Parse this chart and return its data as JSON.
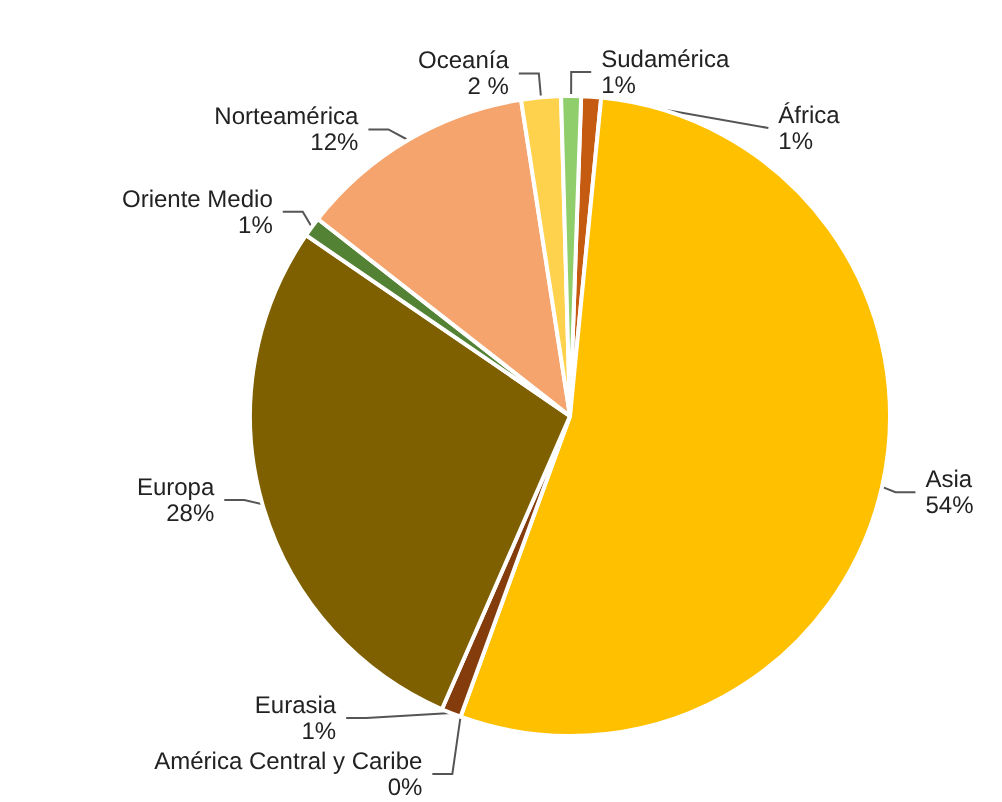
{
  "chart_data": {
    "type": "pie",
    "categories": [
      "África",
      "Asia",
      "América Central y Caribe",
      "Eurasia",
      "Europa",
      "Oriente Medio",
      "Norteamérica",
      "Oceanía",
      "Sudamérica"
    ],
    "values": [
      1,
      54,
      0,
      1,
      28,
      1,
      12,
      2,
      1
    ],
    "value_labels": [
      "1%",
      "54%",
      "0%",
      "1%",
      "28%",
      "1%",
      "12%",
      "2 %",
      "1%"
    ],
    "colors": [
      "#c55a11",
      "#ffc000",
      "#c00000",
      "#843c0c",
      "#7f6000",
      "#548235",
      "#f4a46c",
      "#ffd24d",
      "#8fce6a"
    ]
  }
}
